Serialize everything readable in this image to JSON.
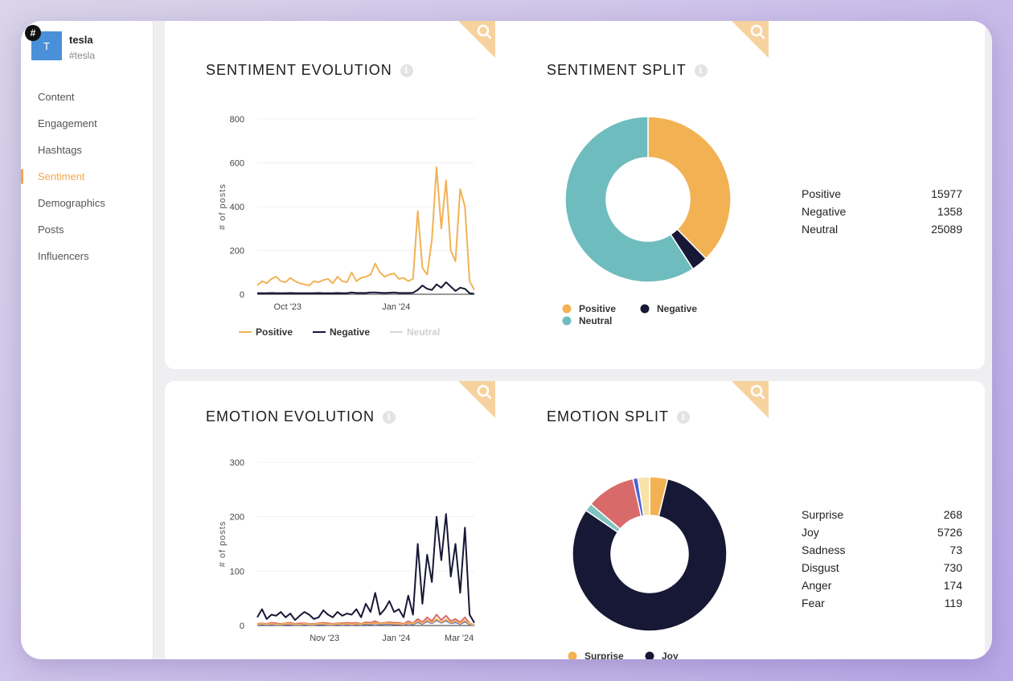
{
  "account": {
    "badge": "#",
    "initial": "T",
    "name": "tesla",
    "tag": "#tesla"
  },
  "nav": [
    {
      "label": "Content",
      "active": false
    },
    {
      "label": "Engagement",
      "active": false
    },
    {
      "label": "Hashtags",
      "active": false
    },
    {
      "label": "Sentiment",
      "active": true
    },
    {
      "label": "Demographics",
      "active": false
    },
    {
      "label": "Posts",
      "active": false
    },
    {
      "label": "Influencers",
      "active": false
    }
  ],
  "colors": {
    "accent": "#f0a94a",
    "positive": "#f2b254",
    "negative": "#171736",
    "neutral": "#6fbcbe",
    "surprise": "#f2b254",
    "joy": "#171736",
    "sadness": "#4a63d8",
    "disgust": "#d96a6a",
    "anger": "#f7e3a8",
    "fear": "#7fc4c2"
  },
  "sentiment_evolution": {
    "title": "SENTIMENT EVOLUTION",
    "info": "i",
    "chart_data": {
      "type": "line",
      "ylabel": "# of posts",
      "ylim": [
        0,
        800
      ],
      "yticks": [
        "0",
        "200",
        "400",
        "600",
        "800"
      ],
      "xticks": [
        "Oct '23",
        "Jan '24"
      ],
      "series": [
        {
          "name": "Positive",
          "values": [
            40,
            60,
            50,
            70,
            80,
            60,
            55,
            75,
            60,
            50,
            45,
            40,
            60,
            55,
            65,
            70,
            50,
            80,
            60,
            55,
            100,
            60,
            75,
            80,
            90,
            140,
            100,
            80,
            90,
            95,
            70,
            75,
            60,
            70,
            380,
            120,
            90,
            250,
            580,
            300,
            520,
            200,
            150,
            480,
            400,
            60,
            20
          ]
        },
        {
          "name": "Negative",
          "values": [
            5,
            5,
            5,
            6,
            5,
            5,
            5,
            6,
            5,
            5,
            5,
            5,
            5,
            6,
            5,
            5,
            5,
            6,
            5,
            5,
            8,
            6,
            6,
            6,
            8,
            8,
            7,
            6,
            7,
            8,
            6,
            6,
            6,
            7,
            20,
            40,
            25,
            20,
            45,
            30,
            55,
            35,
            15,
            30,
            25,
            5,
            2
          ]
        },
        {
          "name": "Neutral",
          "values": []
        }
      ],
      "legend": [
        "Positive",
        "Negative",
        "Neutral"
      ]
    }
  },
  "sentiment_split": {
    "title": "SENTIMENT SPLIT",
    "info": "i",
    "chart_data": {
      "type": "pie",
      "categories": [
        "Positive",
        "Negative",
        "Neutral"
      ],
      "values": [
        15977,
        1358,
        25089
      ]
    },
    "legend": [
      "Positive",
      "Negative",
      "Neutral"
    ],
    "table": [
      {
        "label": "Positive",
        "value": "15977"
      },
      {
        "label": "Negative",
        "value": "1358"
      },
      {
        "label": "Neutral",
        "value": "25089"
      }
    ]
  },
  "emotion_evolution": {
    "title": "EMOTION EVOLUTION",
    "info": "i",
    "chart_data": {
      "type": "line",
      "ylabel": "# of posts",
      "ylim": [
        0,
        300
      ],
      "yticks": [
        "0",
        "100",
        "200",
        "300"
      ],
      "xticks": [
        "Nov '23",
        "Jan '24",
        "Mar '24"
      ],
      "series": [
        {
          "name": "Joy",
          "values": [
            15,
            30,
            12,
            20,
            18,
            25,
            15,
            22,
            10,
            18,
            25,
            20,
            12,
            15,
            28,
            20,
            15,
            25,
            18,
            22,
            20,
            30,
            15,
            40,
            25,
            60,
            20,
            30,
            45,
            25,
            30,
            15,
            55,
            20,
            150,
            40,
            130,
            80,
            200,
            120,
            205,
            90,
            150,
            60,
            180,
            20,
            5
          ]
        },
        {
          "name": "Disgust",
          "values": [
            3,
            4,
            3,
            5,
            4,
            3,
            4,
            5,
            3,
            4,
            4,
            3,
            3,
            4,
            5,
            4,
            3,
            4,
            4,
            5,
            4,
            5,
            3,
            6,
            5,
            8,
            4,
            5,
            6,
            5,
            5,
            3,
            8,
            4,
            12,
            6,
            15,
            8,
            20,
            10,
            18,
            8,
            12,
            6,
            15,
            4,
            1
          ]
        },
        {
          "name": "Sadness",
          "values": [
            1,
            2,
            1,
            2,
            1,
            1,
            2,
            2,
            1,
            1,
            2,
            1,
            1,
            2,
            2,
            1,
            1,
            2,
            1,
            2,
            1,
            2,
            1,
            3,
            2,
            4,
            2,
            3,
            3,
            2,
            2,
            1,
            4,
            2,
            6,
            3,
            8,
            4,
            10,
            5,
            9,
            4,
            6,
            3,
            7,
            2,
            0
          ]
        },
        {
          "name": "Surprise",
          "values": [
            2,
            3,
            2,
            3,
            2,
            2,
            3,
            3,
            2,
            2,
            3,
            2,
            2,
            3,
            3,
            2,
            2,
            3,
            2,
            3,
            2,
            3,
            2,
            4,
            3,
            5,
            3,
            4,
            4,
            3,
            3,
            2,
            5,
            3,
            8,
            4,
            10,
            5,
            12,
            6,
            11,
            5,
            8,
            4,
            9,
            3,
            1
          ]
        }
      ]
    }
  },
  "emotion_split": {
    "title": "EMOTION SPLIT",
    "info": "i",
    "chart_data": {
      "type": "pie",
      "categories": [
        "Surprise",
        "Joy",
        "Fear",
        "Disgust",
        "Sadness",
        "Anger"
      ],
      "values": [
        268,
        5726,
        119,
        730,
        73,
        174
      ]
    },
    "legend": [
      "Surprise",
      "Joy"
    ],
    "table": [
      {
        "label": "Surprise",
        "value": "268"
      },
      {
        "label": "Joy",
        "value": "5726"
      },
      {
        "label": "Sadness",
        "value": "73"
      },
      {
        "label": "Disgust",
        "value": "730"
      },
      {
        "label": "Anger",
        "value": "174"
      },
      {
        "label": "Fear",
        "value": "119"
      }
    ]
  }
}
